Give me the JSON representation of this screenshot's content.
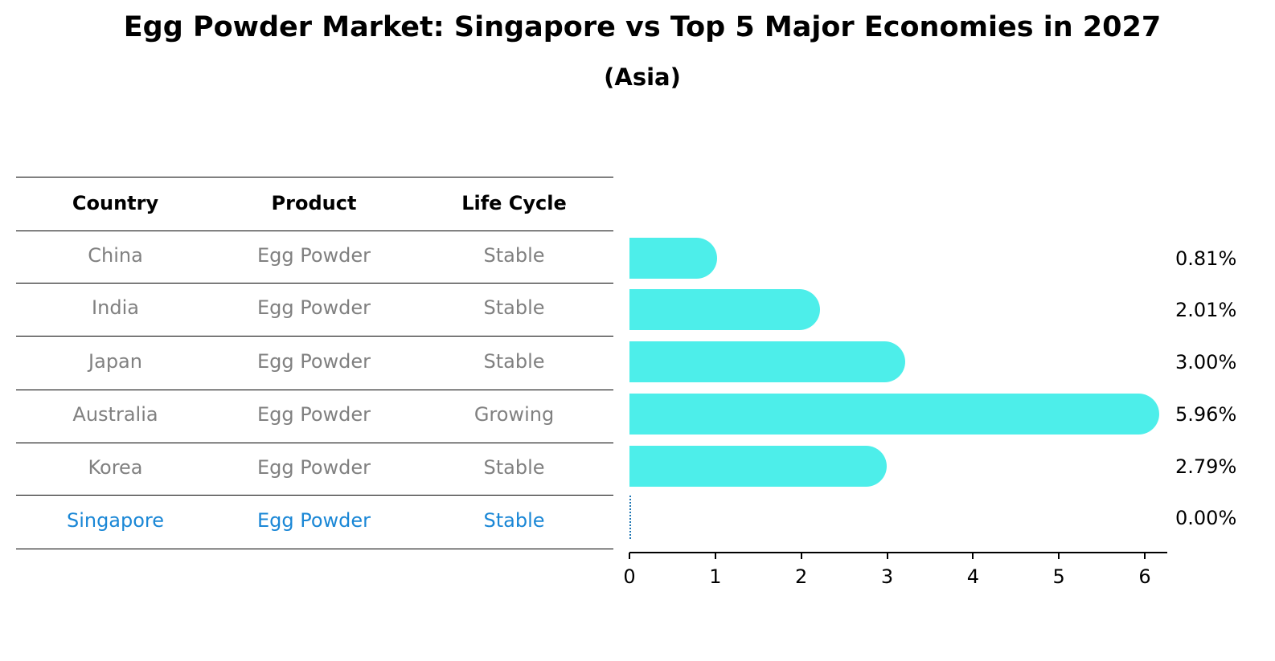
{
  "title": "Egg Powder Market: Singapore vs Top 5 Major Economies in 2027",
  "subtitle": "(Asia)",
  "table": {
    "headers": [
      "Country",
      "Product",
      "Life Cycle"
    ],
    "rows": [
      {
        "country": "China",
        "product": "Egg Powder",
        "life_cycle": "Stable",
        "highlight": false
      },
      {
        "country": "India",
        "product": "Egg Powder",
        "life_cycle": "Stable",
        "highlight": false
      },
      {
        "country": "Japan",
        "product": "Egg Powder",
        "life_cycle": "Stable",
        "highlight": false
      },
      {
        "country": "Australia",
        "product": "Egg Powder",
        "life_cycle": "Growing",
        "highlight": false
      },
      {
        "country": "Korea",
        "product": "Egg Powder",
        "life_cycle": "Stable",
        "highlight": false
      },
      {
        "country": "Singapore",
        "product": "Egg Powder",
        "life_cycle": "Stable",
        "highlight": true
      }
    ]
  },
  "colors": {
    "bar": "#4deeea",
    "highlight_text": "#1a87d6",
    "body_text": "#808080",
    "zero_marker": "#1f77b4"
  },
  "chart_data": {
    "type": "bar",
    "orientation": "horizontal",
    "title": "Egg Powder Market: Singapore vs Top 5 Major Economies in 2027",
    "subtitle": "(Asia)",
    "categories": [
      "China",
      "India",
      "Japan",
      "Australia",
      "Korea",
      "Singapore"
    ],
    "values": [
      0.81,
      2.01,
      3.0,
      5.96,
      2.79,
      0.0
    ],
    "value_labels": [
      "0.81%",
      "2.01%",
      "3.00%",
      "5.96%",
      "2.79%",
      "0.00%"
    ],
    "xlabel": "",
    "ylabel": "",
    "xlim": [
      0,
      6.25
    ],
    "xticks": [
      0,
      1,
      2,
      3,
      4,
      5,
      6
    ],
    "grid": false,
    "legend": null
  }
}
